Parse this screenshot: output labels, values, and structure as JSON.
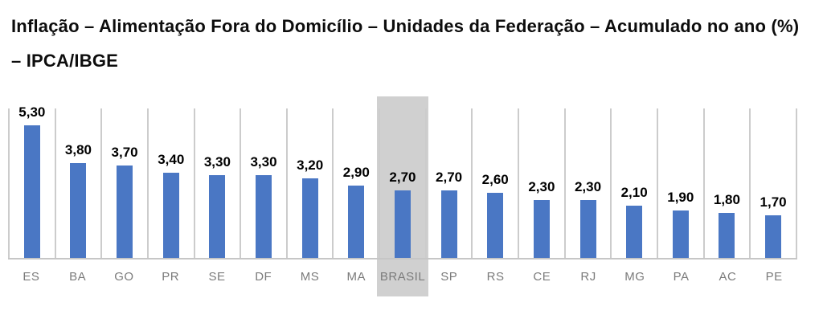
{
  "title": "Inflação – Alimentação Fora do Domicílio – Unidades da Federação – Acumulado no ano (%) – IPCA/IBGE",
  "chart_data": {
    "type": "bar",
    "title": "Inflação – Alimentação Fora do Domicílio – Unidades da Federação – Acumulado no ano (%) – IPCA/IBGE",
    "categories": [
      "ES",
      "BA",
      "GO",
      "PR",
      "SE",
      "DF",
      "MS",
      "MA",
      "BRASIL",
      "SP",
      "RS",
      "CE",
      "RJ",
      "MG",
      "PA",
      "AC",
      "PE"
    ],
    "values": [
      5.3,
      3.8,
      3.7,
      3.4,
      3.3,
      3.3,
      3.2,
      2.9,
      2.7,
      2.7,
      2.6,
      2.3,
      2.3,
      2.1,
      1.9,
      1.8,
      1.7
    ],
    "value_labels": [
      "5,30",
      "3,80",
      "3,70",
      "3,40",
      "3,30",
      "3,30",
      "3,20",
      "2,90",
      "2,70",
      "2,70",
      "2,60",
      "2,30",
      "2,30",
      "2,10",
      "1,90",
      "1,80",
      "1,70"
    ],
    "xlabel": "",
    "ylabel": "",
    "ylim": [
      0,
      6
    ],
    "grid": "vertical-only",
    "legend": "none",
    "highlighted_category": "BRASIL",
    "highlighted_index": 8,
    "colors": {
      "bar": "#4a77c4",
      "highlight_band": "#d0d0d0",
      "gridline": "#cccccc",
      "value_label": "#000000",
      "category_label": "#7b7b7b"
    }
  }
}
